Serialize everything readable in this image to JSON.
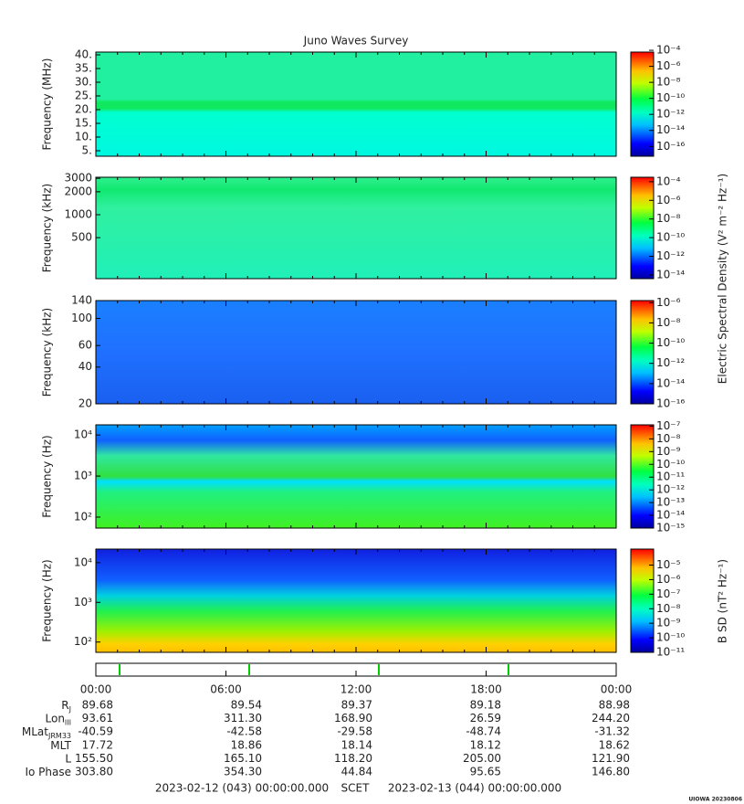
{
  "title": "Juno Waves Survey",
  "chart_data": [
    {
      "type": "heatmap",
      "ylabel": "Frequency (MHz)",
      "log": false,
      "ylim": [
        3,
        41
      ],
      "yticks": [
        {
          "value": 40,
          "label": "40."
        },
        {
          "value": 35,
          "label": "35."
        },
        {
          "value": 30,
          "label": "30."
        },
        {
          "value": 25,
          "label": "25."
        },
        {
          "value": 20,
          "label": "20."
        },
        {
          "value": 15,
          "label": "15."
        },
        {
          "value": 10,
          "label": "10."
        },
        {
          "value": 5,
          "label": "5."
        }
      ],
      "clim": [
        6e-18,
        6e-05
      ],
      "cticks": [
        {
          "value": 0.0001,
          "label": "10⁻⁴"
        },
        {
          "value": 1e-06,
          "label": "10⁻⁶"
        },
        {
          "value": 1e-08,
          "label": "10⁻⁸"
        },
        {
          "value": 1e-10,
          "label": "10⁻¹⁰"
        },
        {
          "value": 1e-12,
          "label": "10⁻¹²"
        },
        {
          "value": 1e-14,
          "label": "10⁻¹⁴"
        },
        {
          "value": 1e-16,
          "label": "10⁻¹⁶"
        }
      ]
    },
    {
      "type": "heatmap",
      "ylabel": "Frequency (kHz)",
      "log": true,
      "ylim": [
        145,
        3100
      ],
      "yticks": [
        3000,
        2000,
        1000,
        500
      ],
      "clim": [
        4e-15,
        0.0003
      ],
      "cticks": [
        {
          "value": 0.0001,
          "label": "10⁻⁴"
        },
        {
          "value": 1e-06,
          "label": "10⁻⁶"
        },
        {
          "value": 1e-08,
          "label": "10⁻⁸"
        },
        {
          "value": 1e-10,
          "label": "10⁻¹⁰"
        },
        {
          "value": 1e-12,
          "label": "10⁻¹²"
        },
        {
          "value": 1e-14,
          "label": "10⁻¹⁴"
        }
      ]
    },
    {
      "type": "heatmap",
      "ylabel": "Frequency (kHz)",
      "log": true,
      "ylim": [
        20,
        140
      ],
      "yticks": [
        140,
        100,
        60,
        40,
        20
      ],
      "clim": [
        1e-16,
        1.6e-06
      ],
      "cticks": [
        {
          "value": 1e-06,
          "label": "10⁻⁶"
        },
        {
          "value": 1e-08,
          "label": "10⁻⁸"
        },
        {
          "value": 1e-10,
          "label": "10⁻¹⁰"
        },
        {
          "value": 1e-12,
          "label": "10⁻¹²"
        },
        {
          "value": 1e-14,
          "label": "10⁻¹⁴"
        },
        {
          "value": 1e-16,
          "label": "10⁻¹⁶"
        }
      ]
    },
    {
      "type": "heatmap",
      "ylabel": "Frequency (Hz)",
      "log": true,
      "ylim": [
        54,
        17700
      ],
      "yticks": [
        {
          "value": 10000,
          "label": "10⁴"
        },
        {
          "value": 1000,
          "label": "10³"
        },
        {
          "value": 100,
          "label": "10²"
        }
      ],
      "clim": [
        1e-15,
        1.26e-07
      ],
      "cticks": [
        {
          "value": 1e-07,
          "label": "10⁻⁷"
        },
        {
          "value": 1e-08,
          "label": "10⁻⁸"
        },
        {
          "value": 1e-09,
          "label": "10⁻⁹"
        },
        {
          "value": 1e-10,
          "label": "10⁻¹⁰"
        },
        {
          "value": 1e-11,
          "label": "10⁻¹¹"
        },
        {
          "value": 1e-12,
          "label": "10⁻¹²"
        },
        {
          "value": 1e-13,
          "label": "10⁻¹³"
        },
        {
          "value": 1e-14,
          "label": "10⁻¹⁴"
        },
        {
          "value": 1e-15,
          "label": "10⁻¹⁵"
        }
      ]
    },
    {
      "type": "heatmap",
      "ylabel": "Frequency (Hz)",
      "log": true,
      "ylim": [
        55,
        22000
      ],
      "yticks": [
        {
          "value": 10000,
          "label": "10⁴"
        },
        {
          "value": 1000,
          "label": "10³"
        },
        {
          "value": 100,
          "label": "10²"
        }
      ],
      "clim": [
        1e-11,
        0.000126
      ],
      "cticks": [
        {
          "value": 1e-05,
          "label": "10⁻⁵"
        },
        {
          "value": 1e-06,
          "label": "10⁻⁶"
        },
        {
          "value": 1e-07,
          "label": "10⁻⁷"
        },
        {
          "value": 1e-08,
          "label": "10⁻⁸"
        },
        {
          "value": 1e-09,
          "label": "10⁻⁹"
        },
        {
          "value": 1e-10,
          "label": "10⁻¹⁰"
        },
        {
          "value": 1e-11,
          "label": "10⁻¹¹"
        }
      ]
    }
  ],
  "colorbar_labels": [
    "Electric Spectral Density (V² m⁻² Hz⁻¹)",
    "B SD (nT² Hz⁻¹)"
  ],
  "time_ticks": [
    "00:00",
    "06:00",
    "12:00",
    "18:00",
    "00:00"
  ],
  "ephemeris": [
    {
      "label": "R",
      "sub": "J",
      "values": [
        "89.68",
        "89.54",
        "89.37",
        "89.18",
        "88.98"
      ]
    },
    {
      "label": "Lon",
      "sub": "III",
      "values": [
        "93.61",
        "311.30",
        "168.90",
        "26.59",
        "244.20"
      ]
    },
    {
      "label": "MLat",
      "sub": "JRM33",
      "values": [
        "-40.59",
        "-42.58",
        "-29.58",
        "-48.74",
        "-31.32"
      ]
    },
    {
      "label": "MLT",
      "values": [
        "17.72",
        "18.86",
        "18.14",
        "18.12",
        "18.62"
      ]
    },
    {
      "label": "L",
      "values": [
        "155.50",
        "165.10",
        "118.20",
        "205.00",
        "121.90"
      ]
    },
    {
      "label": "Io Phase",
      "values": [
        "303.80",
        "354.30",
        "44.84",
        "95.65",
        "146.80"
      ]
    }
  ],
  "footer": {
    "start": "2023-02-12 (043) 00:00:00.000",
    "middle": "SCET",
    "end": "2023-02-13 (044) 00:00:00.000"
  },
  "credit": "UIOWA 20230806"
}
